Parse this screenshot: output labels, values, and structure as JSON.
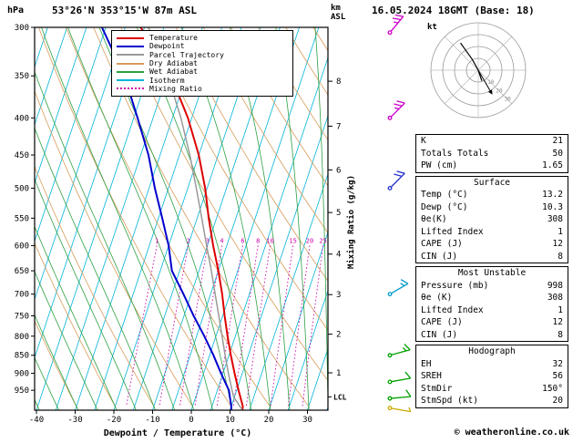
{
  "header": {
    "pressure_unit": "hPa",
    "station": "53°26'N 353°15'W 87m ASL",
    "datetime": "16.05.2024 18GMT (Base: 18)",
    "km_label": "km",
    "asl_label": "ASL"
  },
  "axes": {
    "xlabel": "Dewpoint / Temperature (°C)",
    "right_label": "Mixing Ratio (g/kg)",
    "pressure_ticks": [
      300,
      350,
      400,
      450,
      500,
      550,
      600,
      650,
      700,
      750,
      800,
      850,
      900,
      950
    ],
    "temp_ticks": [
      -40,
      -30,
      -20,
      -10,
      0,
      10,
      20,
      30
    ],
    "km_ticks": [
      1,
      2,
      3,
      4,
      5,
      6,
      7,
      8
    ],
    "lcl_label": "LCL",
    "lcl_pressure": 970
  },
  "legend": [
    {
      "id": "temperature",
      "label": "Temperature",
      "color": "#dd0000",
      "style": "solid"
    },
    {
      "id": "dewpoint",
      "label": "Dewpoint",
      "color": "#0000cc",
      "style": "solid"
    },
    {
      "id": "parcel",
      "label": "Parcel Trajectory",
      "color": "#999999",
      "style": "solid"
    },
    {
      "id": "dry-adiabat",
      "label": "Dry Adiabat",
      "color": "#d79b5a",
      "style": "solid"
    },
    {
      "id": "wet-adiabat",
      "label": "Wet Adiabat",
      "color": "#2da042",
      "style": "solid"
    },
    {
      "id": "isotherm",
      "label": "Isotherm",
      "color": "#00b4d8",
      "style": "solid"
    },
    {
      "id": "mixing-ratio",
      "label": "Mixing Ratio",
      "color": "#cc00aa",
      "style": "dotted"
    }
  ],
  "chart_data": {
    "type": "line",
    "title": "Skew-T log-P sounding",
    "xlabel": "Dewpoint / Temperature (°C)",
    "ylabel": "hPa",
    "pressure_range": [
      300,
      1012
    ],
    "pressure_log_scale": true,
    "isotherm_step": 5,
    "dry_adiabat_step": 10,
    "wet_adiabat_step": 5,
    "mixing_ratio_lines": [
      1,
      2,
      3,
      4,
      6,
      8,
      10,
      15,
      20,
      25
    ],
    "colors": {
      "isotherm": "#00b4d8",
      "dry_adiabat": "#d79b5a",
      "wet_adiabat": "#2da042",
      "mixing_ratio": "#cc00aa"
    },
    "series": [
      {
        "id": "temperature",
        "name": "Temperature",
        "color": "#dd0000",
        "width": 2,
        "points": [
          [
            1012,
            13.2
          ],
          [
            1000,
            13.0
          ],
          [
            950,
            10.5
          ],
          [
            900,
            8.0
          ],
          [
            850,
            5.5
          ],
          [
            800,
            3.0
          ],
          [
            750,
            0.5
          ],
          [
            700,
            -2.0
          ],
          [
            650,
            -5.0
          ],
          [
            600,
            -8.5
          ],
          [
            550,
            -12.0
          ],
          [
            500,
            -15.5
          ],
          [
            450,
            -20.0
          ],
          [
            400,
            -26.0
          ],
          [
            350,
            -34.0
          ],
          [
            300,
            -46.0
          ]
        ]
      },
      {
        "id": "dewpoint",
        "name": "Dewpoint",
        "color": "#0000cc",
        "width": 2,
        "points": [
          [
            1012,
            10.3
          ],
          [
            1000,
            10.0
          ],
          [
            950,
            8.0
          ],
          [
            900,
            4.5
          ],
          [
            850,
            1.0
          ],
          [
            800,
            -3.0
          ],
          [
            750,
            -7.5
          ],
          [
            700,
            -12.0
          ],
          [
            650,
            -17.0
          ],
          [
            600,
            -20.0
          ],
          [
            550,
            -24.0
          ],
          [
            500,
            -28.5
          ],
          [
            450,
            -33.0
          ],
          [
            400,
            -39.0
          ],
          [
            350,
            -46.0
          ],
          [
            300,
            -56.0
          ]
        ]
      },
      {
        "id": "parcel",
        "name": "Parcel Trajectory",
        "color": "#999999",
        "width": 1.5,
        "points": [
          [
            1012,
            13.2
          ],
          [
            970,
            9.8
          ],
          [
            950,
            8.8
          ],
          [
            900,
            6.4
          ],
          [
            850,
            4.0
          ],
          [
            800,
            1.6
          ],
          [
            750,
            -1.0
          ],
          [
            700,
            -3.8
          ],
          [
            650,
            -6.8
          ],
          [
            600,
            -10.2
          ],
          [
            550,
            -13.8
          ],
          [
            500,
            -17.8
          ],
          [
            450,
            -22.3
          ],
          [
            400,
            -27.8
          ],
          [
            350,
            -34.8
          ],
          [
            300,
            -44.0
          ]
        ]
      }
    ]
  },
  "wind_barbs": [
    {
      "pressure": 305,
      "color": "#cc00cc",
      "speed_kt": 25,
      "dir_deg": 40
    },
    {
      "pressure": 400,
      "color": "#cc00cc",
      "speed_kt": 25,
      "dir_deg": 45
    },
    {
      "pressure": 500,
      "color": "#2233cc",
      "speed_kt": 20,
      "dir_deg": 45
    },
    {
      "pressure": 700,
      "color": "#0099cc",
      "speed_kt": 15,
      "dir_deg": 60
    },
    {
      "pressure": 850,
      "color": "#00a000",
      "speed_kt": 15,
      "dir_deg": 75
    },
    {
      "pressure": 925,
      "color": "#00a000",
      "speed_kt": 10,
      "dir_deg": 80
    },
    {
      "pressure": 975,
      "color": "#00a000",
      "speed_kt": 10,
      "dir_deg": 85
    },
    {
      "pressure": 1005,
      "color": "#ccaa00",
      "speed_kt": 5,
      "dir_deg": 100
    }
  ],
  "hodograph": {
    "unit_label": "kt",
    "rings_kt": [
      10,
      20,
      30,
      40
    ],
    "ring_labels": [
      10,
      20,
      30
    ],
    "trace_uv": [
      [
        3,
        -9
      ],
      [
        0,
        0
      ],
      [
        -5,
        9
      ],
      [
        -10,
        16
      ],
      [
        -15,
        23
      ]
    ],
    "storm_motion": {
      "dir_deg": 150,
      "speed_kt": 20
    }
  },
  "indices": [
    {
      "title": "",
      "rows": [
        [
          "K",
          "21"
        ],
        [
          "Totals Totals",
          "50"
        ],
        [
          "PW (cm)",
          "1.65"
        ]
      ]
    },
    {
      "title": "Surface",
      "rows": [
        [
          "Temp (°C)",
          "13.2"
        ],
        [
          "Dewp (°C)",
          "10.3"
        ],
        [
          "θe(K)",
          "308"
        ],
        [
          "Lifted Index",
          "1"
        ],
        [
          "CAPE (J)",
          "12"
        ],
        [
          "CIN (J)",
          "8"
        ]
      ]
    },
    {
      "title": "Most Unstable",
      "rows": [
        [
          "Pressure (mb)",
          "998"
        ],
        [
          "θe (K)",
          "308"
        ],
        [
          "Lifted Index",
          "1"
        ],
        [
          "CAPE (J)",
          "12"
        ],
        [
          "CIN (J)",
          "8"
        ]
      ]
    },
    {
      "title": "Hodograph",
      "rows": [
        [
          "EH",
          "32"
        ],
        [
          "SREH",
          "56"
        ],
        [
          "StmDir",
          "150°"
        ],
        [
          "StmSpd (kt)",
          "20"
        ]
      ]
    }
  ],
  "footer": {
    "copyright": "© weatheronline.co.uk"
  }
}
